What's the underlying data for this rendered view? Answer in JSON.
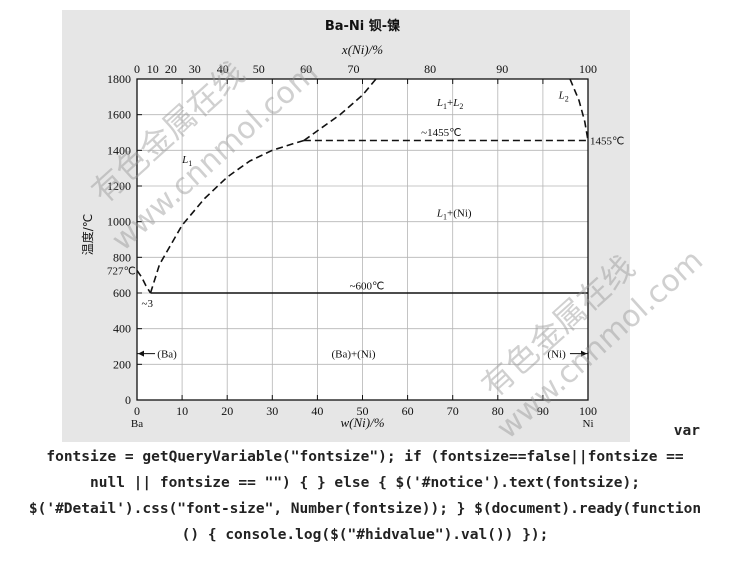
{
  "chart_data": {
    "type": "line",
    "title": "Ba-Ni 钡-镍",
    "xlabel": "w(Ni)/%",
    "xlabel_top": "x(Ni)/%",
    "ylabel": "温度/℃",
    "xlim": [
      0,
      100
    ],
    "ylim": [
      0,
      1800
    ],
    "x_ticks": [
      0,
      10,
      20,
      30,
      40,
      50,
      60,
      70,
      80,
      90,
      100
    ],
    "x_ticks_top": [
      0,
      10,
      20,
      30,
      40,
      50,
      60,
      70,
      80,
      90,
      100
    ],
    "y_ticks": [
      0,
      200,
      400,
      600,
      800,
      1000,
      1200,
      1400,
      1600,
      1800
    ],
    "x_end_labels": [
      "Ba",
      "Ni"
    ],
    "grid": true,
    "series": [
      {
        "style": "dashed",
        "x": [
          0,
          1,
          2,
          3
        ],
        "y": [
          727,
          690,
          640,
          600
        ]
      },
      {
        "style": "dashed",
        "x": [
          3,
          5,
          10,
          15,
          20,
          25,
          30,
          35,
          37
        ],
        "y": [
          600,
          760,
          980,
          1130,
          1250,
          1340,
          1400,
          1440,
          1455
        ]
      },
      {
        "style": "dashed",
        "x": [
          37,
          45,
          50,
          53
        ],
        "y": [
          1455,
          1600,
          1710,
          1800
        ]
      },
      {
        "style": "dashed",
        "x": [
          37,
          100
        ],
        "y": [
          1455,
          1455
        ]
      },
      {
        "style": "dashed",
        "x": [
          96,
          98,
          99.3,
          100
        ],
        "y": [
          1800,
          1680,
          1560,
          1455
        ]
      },
      {
        "style": "solid",
        "x": [
          3,
          100
        ],
        "y": [
          600,
          600
        ]
      }
    ],
    "annotations": [
      {
        "text": "L1+L2",
        "x": 68,
        "y": 1650
      },
      {
        "text": "L2",
        "x": 97,
        "y": 1680
      },
      {
        "text": "~1455℃",
        "x": 68,
        "y": 1490
      },
      {
        "text": "1455℃",
        "x": 100,
        "y": 1455
      },
      {
        "text": "L1",
        "x": 12,
        "y": 1340
      },
      {
        "text": "L1+(Ni)",
        "x": 68,
        "y": 1040
      },
      {
        "text": "727℃",
        "x": 0,
        "y": 727
      },
      {
        "text": "~600℃",
        "x": 50,
        "y": 630
      },
      {
        "text": "~3",
        "x": 3,
        "y": 560
      },
      {
        "text": "(Ba)",
        "x": 5,
        "y": 260
      },
      {
        "text": "(Ba)+(Ni)",
        "x": 47,
        "y": 270
      },
      {
        "text": "(Ni)",
        "x": 94,
        "y": 270
      }
    ]
  },
  "watermarks": [
    "有色金属在线",
    "www.cnnmol.com",
    "有色金属在线",
    "www.cnnmol.com"
  ],
  "code": {
    "line1": "var",
    "line2": "fontsize = getQueryVariable(\"fontsize\"); if (fontsize==false||fontsize ==",
    "line3": "null || fontsize == \"\") { } else { $('#notice').text(fontsize);",
    "line4": "$('#Detail').css(\"font-size\", Number(fontsize)); } $(document).ready(function",
    "line5": "() { console.log($(\"#hidvalue\").val()) });"
  }
}
